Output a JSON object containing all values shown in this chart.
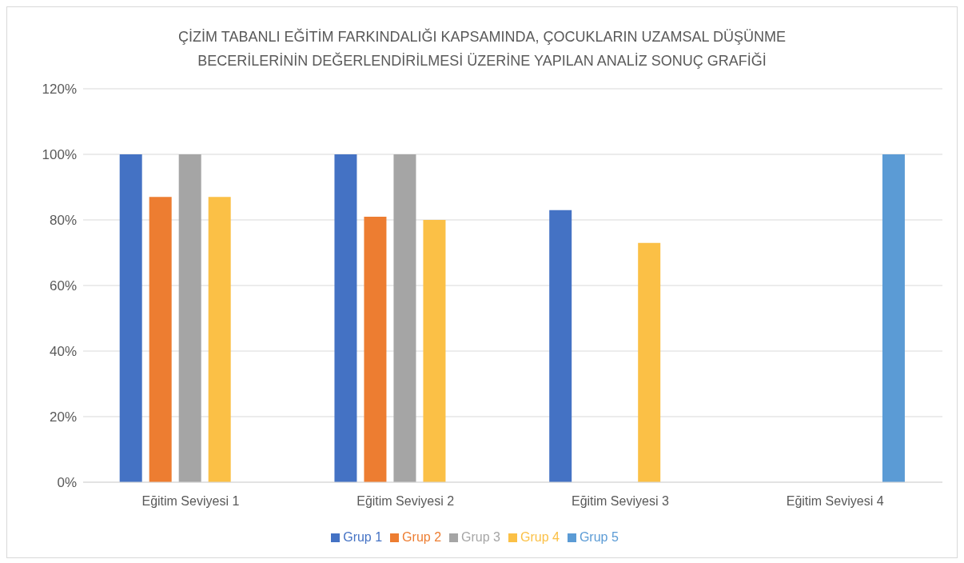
{
  "chart_data": {
    "type": "bar",
    "title": "ÇİZİM TABANLI EĞİTİM FARKINDALIĞI KAPSAMINDA, ÇOCUKLARIN UZAMSAL DÜŞÜNME BECERİLERİNİN DEĞERLENDİRİLMESİ ÜZERİNE YAPILAN ANALİZ SONUÇ GRAFİĞİ",
    "categories": [
      "Eğitim Seviyesi 1",
      "Eğitim Seviyesi 2",
      "Eğitim Seviyesi 3",
      "Eğitim Seviyesi 4"
    ],
    "series": [
      {
        "name": "Grup 1",
        "color": "#4472c4",
        "values": [
          100,
          100,
          83,
          null
        ]
      },
      {
        "name": "Grup 2",
        "color": "#ed7d31",
        "values": [
          87,
          81,
          null,
          null
        ]
      },
      {
        "name": "Grup 3",
        "color": "#a5a5a5",
        "values": [
          100,
          100,
          null,
          null
        ]
      },
      {
        "name": "Grup 4",
        "color": "#fbc046",
        "values": [
          87,
          80,
          73,
          null
        ]
      },
      {
        "name": "Grup 5",
        "color": "#5b9bd5",
        "values": [
          null,
          null,
          null,
          100
        ]
      }
    ],
    "ylim": [
      0,
      120
    ],
    "yticks": [
      {
        "value": 0,
        "label": "0%"
      },
      {
        "value": 20,
        "label": "20%"
      },
      {
        "value": 40,
        "label": "40%"
      },
      {
        "value": 60,
        "label": "60%"
      },
      {
        "value": 80,
        "label": "80%"
      },
      {
        "value": 100,
        "label": "100%"
      },
      {
        "value": 120,
        "label": "120%"
      }
    ],
    "grid": "y",
    "legend": "bottom"
  }
}
